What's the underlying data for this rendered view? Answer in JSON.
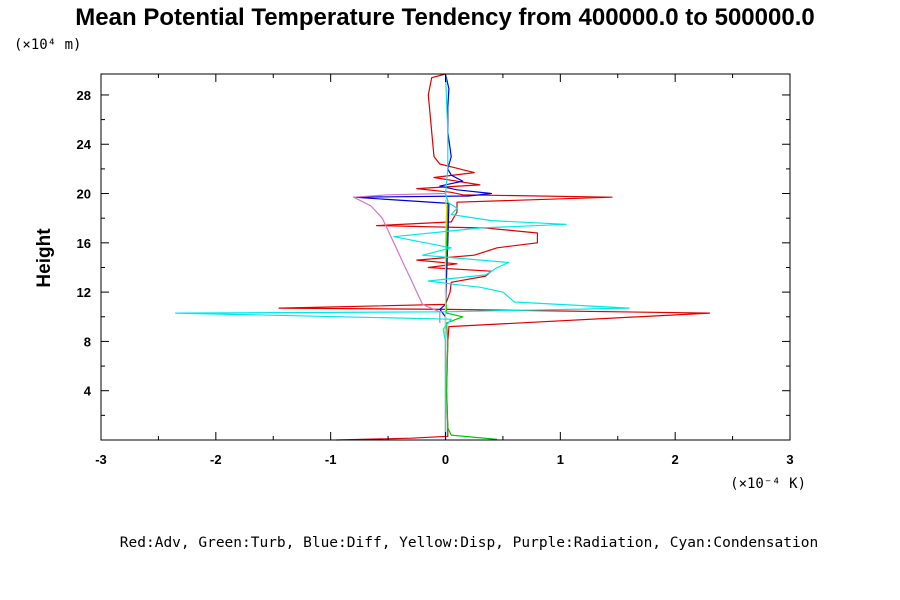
{
  "chart_data": {
    "type": "line",
    "title": "Mean Potential Temperature Tendency from 400000.0 to 500000.0",
    "xlabel_units": "(×10⁻⁴ K)",
    "ylabel": "Height",
    "ylabel_units": "(×10⁴ m)",
    "xlim": [
      -3,
      3
    ],
    "ylim": [
      0,
      29.7
    ],
    "x_ticks": [
      -3,
      -2,
      -1,
      0,
      1,
      2,
      3
    ],
    "y_ticks": [
      4,
      8,
      12,
      16,
      20,
      24,
      28
    ],
    "legend_text": "Red:Adv, Green:Turb, Blue:Diff, Yellow:Disp, Purple:Radiation, Cyan:Condensation",
    "series": [
      {
        "name": "Adv",
        "color": "#e00000",
        "points": [
          [
            -0.95,
            0
          ],
          [
            -0.3,
            0.15
          ],
          [
            0.02,
            0.3
          ],
          [
            0.02,
            1
          ],
          [
            0.01,
            4
          ],
          [
            0.02,
            8
          ],
          [
            0.03,
            9.2
          ],
          [
            2.3,
            10.3
          ],
          [
            0.02,
            10.6
          ],
          [
            -1.45,
            10.7
          ],
          [
            0.0,
            11.0
          ],
          [
            0.04,
            12
          ],
          [
            0.05,
            12.8
          ],
          [
            0.35,
            13.3
          ],
          [
            0.4,
            13.7
          ],
          [
            -0.15,
            14.0
          ],
          [
            0.1,
            14.3
          ],
          [
            -0.25,
            14.6
          ],
          [
            0.25,
            15.0
          ],
          [
            0.45,
            15.6
          ],
          [
            0.8,
            16.0
          ],
          [
            0.8,
            16.8
          ],
          [
            0.35,
            17.2
          ],
          [
            -0.6,
            17.4
          ],
          [
            0.05,
            17.7
          ],
          [
            0.1,
            18.5
          ],
          [
            0.1,
            19.3
          ],
          [
            1.45,
            19.7
          ],
          [
            0.15,
            19.9
          ],
          [
            0.05,
            20.1
          ],
          [
            -0.25,
            20.4
          ],
          [
            0.3,
            20.7
          ],
          [
            0.1,
            21.0
          ],
          [
            -0.1,
            21.3
          ],
          [
            0.25,
            21.7
          ],
          [
            0.08,
            22.1
          ],
          [
            -0.05,
            22.4
          ],
          [
            -0.1,
            23
          ],
          [
            -0.12,
            25
          ],
          [
            -0.15,
            28
          ],
          [
            -0.12,
            29.4
          ],
          [
            0,
            29.7
          ]
        ]
      },
      {
        "name": "Turb",
        "color": "#00cc00",
        "points": [
          [
            0.45,
            0.05
          ],
          [
            0.05,
            0.4
          ],
          [
            0.02,
            1
          ],
          [
            0.01,
            4
          ],
          [
            0.02,
            8
          ],
          [
            0.01,
            9.5
          ],
          [
            0.15,
            10.0
          ],
          [
            0.01,
            10.3
          ],
          [
            0.0,
            12
          ],
          [
            0.01,
            16
          ],
          [
            0.02,
            19.4
          ],
          [
            0.0,
            20
          ]
        ]
      },
      {
        "name": "Diff",
        "color": "#0000dd",
        "points": [
          [
            0.0,
            0
          ],
          [
            0.0,
            4
          ],
          [
            0.0,
            8
          ],
          [
            0.0,
            10
          ],
          [
            -0.05,
            10.6
          ],
          [
            0.0,
            11
          ],
          [
            0.02,
            16
          ],
          [
            0.03,
            19.2
          ],
          [
            -0.8,
            19.7
          ],
          [
            0.2,
            19.8
          ],
          [
            0.4,
            20.0
          ],
          [
            0.1,
            20.3
          ],
          [
            -0.05,
            20.6
          ],
          [
            0.15,
            21
          ],
          [
            0.05,
            21.5
          ],
          [
            0.02,
            22
          ],
          [
            0.05,
            23
          ],
          [
            0.02,
            25
          ],
          [
            0.02,
            27
          ],
          [
            0.03,
            28.5
          ],
          [
            0.0,
            29.7
          ]
        ]
      },
      {
        "name": "Disp",
        "color": "#dddd00",
        "points": [
          [
            0.0,
            0.5
          ],
          [
            0.0,
            4
          ],
          [
            0.0,
            8
          ],
          [
            0.0,
            12
          ],
          [
            0.0,
            16
          ],
          [
            0.01,
            18.8
          ],
          [
            0.0,
            19.5
          ]
        ]
      },
      {
        "name": "Radiation",
        "color": "#cc77cc",
        "points": [
          [
            -0.05,
            9.5
          ],
          [
            -0.05,
            10.4
          ],
          [
            -0.2,
            11.0
          ],
          [
            -0.25,
            12
          ],
          [
            -0.3,
            13
          ],
          [
            -0.35,
            14
          ],
          [
            -0.4,
            15
          ],
          [
            -0.45,
            16
          ],
          [
            -0.5,
            17
          ],
          [
            -0.55,
            18
          ],
          [
            -0.65,
            19.0
          ],
          [
            -0.8,
            19.7
          ],
          [
            -0.5,
            19.9
          ],
          [
            0.0,
            20.0
          ]
        ]
      },
      {
        "name": "Condensation",
        "color": "#00e8e8",
        "points": [
          [
            0.0,
            0
          ],
          [
            0.0,
            4
          ],
          [
            0.0,
            8
          ],
          [
            -0.02,
            9.0
          ],
          [
            0.05,
            9.8
          ],
          [
            -2.35,
            10.3
          ],
          [
            0.0,
            10.4
          ],
          [
            1.6,
            10.7
          ],
          [
            0.6,
            11.2
          ],
          [
            0.5,
            12.0
          ],
          [
            0.3,
            12.4
          ],
          [
            0.1,
            12.6
          ],
          [
            -0.15,
            12.9
          ],
          [
            0.35,
            13.4
          ],
          [
            0.45,
            14.0
          ],
          [
            0.55,
            14.4
          ],
          [
            -0.2,
            15.0
          ],
          [
            0.05,
            15.6
          ],
          [
            -0.45,
            16.5
          ],
          [
            0.3,
            17.2
          ],
          [
            1.05,
            17.5
          ],
          [
            0.4,
            17.8
          ],
          [
            0.05,
            18.3
          ],
          [
            0.1,
            18.8
          ],
          [
            0.02,
            19.3
          ],
          [
            0.0,
            20.0
          ],
          [
            0.02,
            22
          ],
          [
            0.02,
            25
          ],
          [
            0.0,
            29.7
          ]
        ]
      }
    ]
  }
}
